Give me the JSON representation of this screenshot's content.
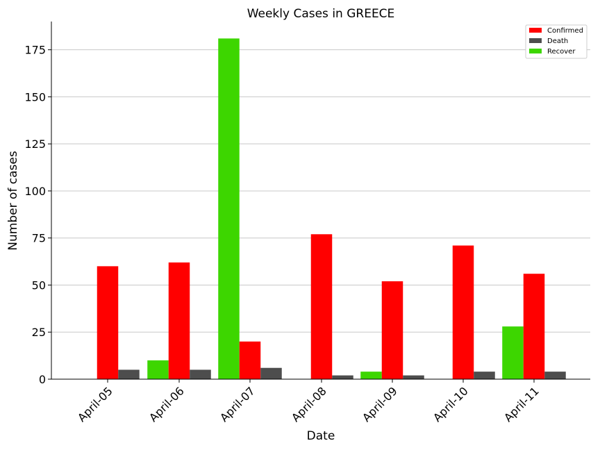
{
  "chart_data": {
    "type": "bar",
    "title": "Weekly Cases in GREECE",
    "xlabel": "Date",
    "ylabel": "Number of cases",
    "categories": [
      "April-05",
      "April-06",
      "April-07",
      "April-08",
      "April-09",
      "April-10",
      "April-11"
    ],
    "series": [
      {
        "name": "Confirmed",
        "color": "#ff0000",
        "values": [
          60,
          62,
          20,
          77,
          52,
          71,
          56
        ]
      },
      {
        "name": "Death",
        "color": "#4d4d4d",
        "values": [
          5,
          5,
          6,
          2,
          2,
          4,
          4
        ]
      },
      {
        "name": "Recover",
        "color": "#3dd600",
        "values": [
          0,
          10,
          181,
          0,
          4,
          0,
          28
        ]
      }
    ],
    "ylim": [
      0,
      190
    ],
    "yticks": [
      0,
      25,
      50,
      75,
      100,
      125,
      150,
      175
    ],
    "grid": "horizontal",
    "legend": "top-right"
  }
}
